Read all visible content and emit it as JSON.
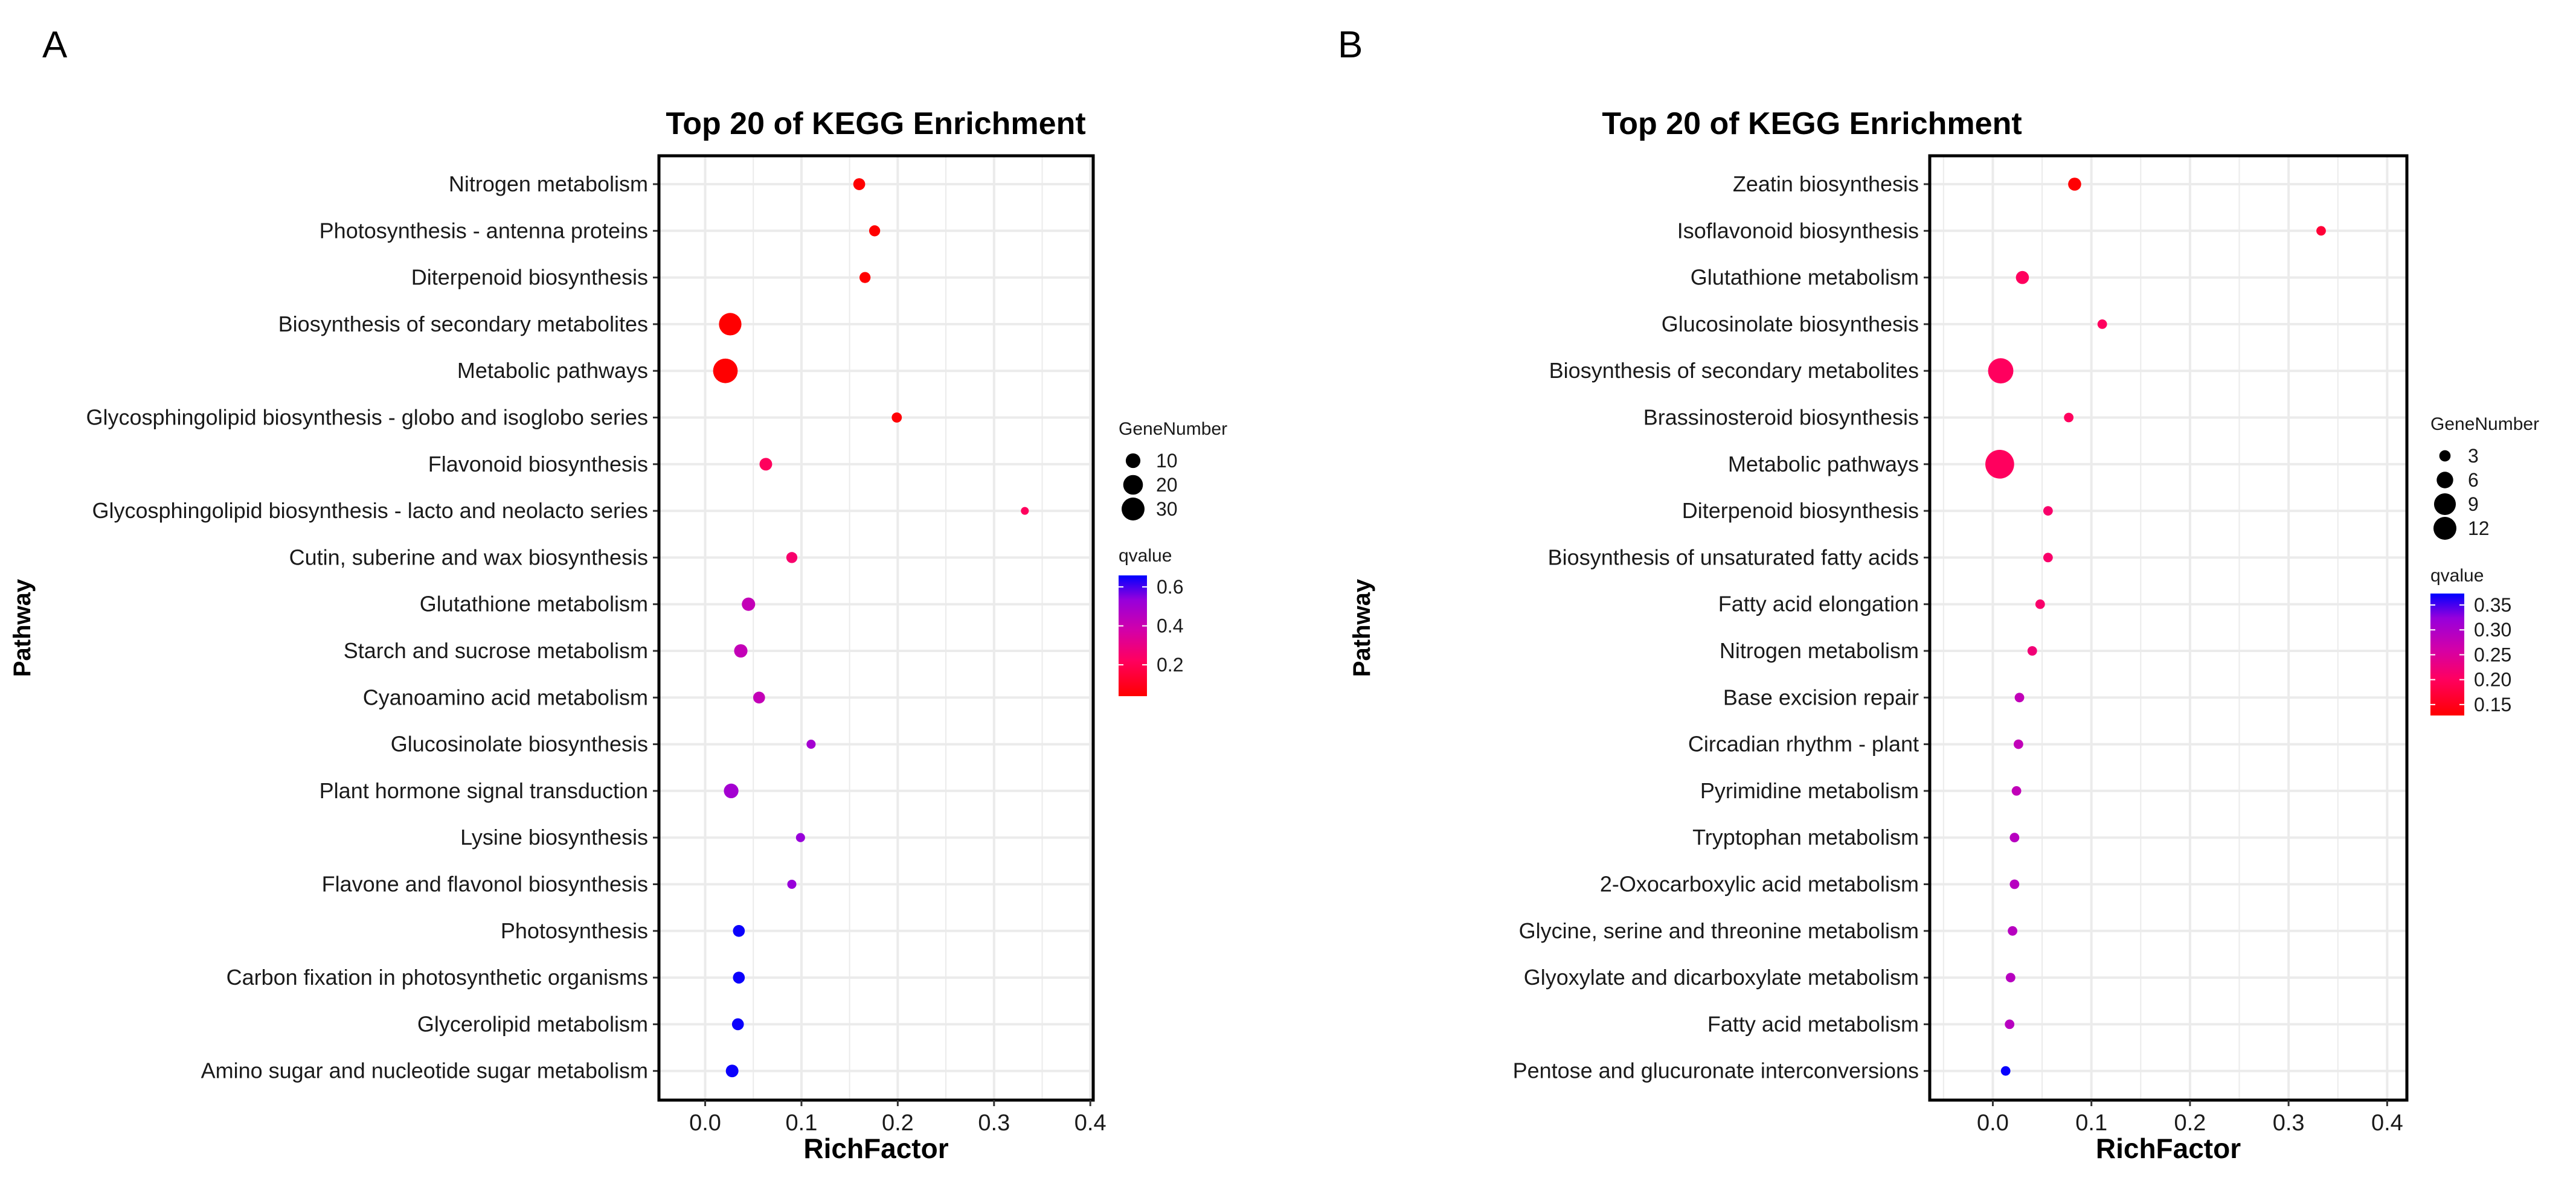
{
  "chart_data": [
    {
      "panel": "A",
      "type": "scatter",
      "title": "Top 20 of KEGG Enrichment",
      "xlabel": "RichFactor",
      "ylabel": "Pathway",
      "xlim": [
        -0.048,
        0.403
      ],
      "xticks": [
        0.0,
        0.1,
        0.2,
        0.3,
        0.4
      ],
      "xtick_labels": [
        "0.0",
        "0.1",
        "0.2",
        "0.3",
        "0.4"
      ],
      "grid": true,
      "size_legend": {
        "title": "GeneNumber",
        "values": [
          10,
          20,
          30
        ],
        "labels": [
          "10",
          "20",
          "30"
        ]
      },
      "color_legend": {
        "title": "qvalue",
        "range": [
          0.039,
          0.659
        ],
        "ticks": [
          0.2,
          0.4,
          0.6
        ],
        "labels": [
          "0.2",
          "0.4",
          "0.6"
        ],
        "low_color": "#FF0000",
        "high_color": "#0000FF"
      },
      "legend_position": "right",
      "points": [
        {
          "pathway": "Nitrogen metabolism",
          "rich_factor": 0.16,
          "gene_number": 6,
          "qvalue": 0.04
        },
        {
          "pathway": "Photosynthesis - antenna proteins",
          "rich_factor": 0.176,
          "gene_number": 5,
          "qvalue": 0.04
        },
        {
          "pathway": "Diterpenoid biosynthesis",
          "rich_factor": 0.166,
          "gene_number": 5,
          "qvalue": 0.04
        },
        {
          "pathway": "Biosynthesis of secondary metabolites",
          "rich_factor": 0.026,
          "gene_number": 27,
          "qvalue": 0.04
        },
        {
          "pathway": "Metabolic pathways",
          "rich_factor": 0.021,
          "gene_number": 33,
          "qvalue": 0.04
        },
        {
          "pathway": "Glycosphingolipid biosynthesis - globo and isoglobo series",
          "rich_factor": 0.199,
          "gene_number": 4,
          "qvalue": 0.05
        },
        {
          "pathway": "Flavonoid biosynthesis",
          "rich_factor": 0.063,
          "gene_number": 7,
          "qvalue": 0.22
        },
        {
          "pathway": "Glycosphingolipid biosynthesis - lacto and neolacto series",
          "rich_factor": 0.332,
          "gene_number": 2,
          "qvalue": 0.22
        },
        {
          "pathway": "Cutin, suberine and wax biosynthesis",
          "rich_factor": 0.09,
          "gene_number": 5,
          "qvalue": 0.25
        },
        {
          "pathway": "Glutathione metabolism",
          "rich_factor": 0.045,
          "gene_number": 8,
          "qvalue": 0.42
        },
        {
          "pathway": "Starch and sucrose metabolism",
          "rich_factor": 0.037,
          "gene_number": 8,
          "qvalue": 0.42
        },
        {
          "pathway": "Cyanoamino acid metabolism",
          "rich_factor": 0.056,
          "gene_number": 6,
          "qvalue": 0.42
        },
        {
          "pathway": "Glucosinolate biosynthesis",
          "rich_factor": 0.11,
          "gene_number": 3,
          "qvalue": 0.5
        },
        {
          "pathway": "Plant hormone signal transduction",
          "rich_factor": 0.027,
          "gene_number": 10,
          "qvalue": 0.5
        },
        {
          "pathway": "Lysine biosynthesis",
          "rich_factor": 0.099,
          "gene_number": 3,
          "qvalue": 0.53
        },
        {
          "pathway": "Flavone and flavonol biosynthesis",
          "rich_factor": 0.09,
          "gene_number": 3,
          "qvalue": 0.53
        },
        {
          "pathway": "Photosynthesis",
          "rich_factor": 0.035,
          "gene_number": 6,
          "qvalue": 0.65
        },
        {
          "pathway": "Carbon fixation in photosynthetic organisms",
          "rich_factor": 0.035,
          "gene_number": 6,
          "qvalue": 0.65
        },
        {
          "pathway": "Glycerolipid metabolism",
          "rich_factor": 0.034,
          "gene_number": 6,
          "qvalue": 0.65
        },
        {
          "pathway": "Amino sugar and nucleotide sugar metabolism",
          "rich_factor": 0.028,
          "gene_number": 7,
          "qvalue": 0.65
        }
      ]
    },
    {
      "panel": "B",
      "type": "scatter",
      "title": "Top 20 of KEGG Enrichment",
      "xlabel": "RichFactor",
      "ylabel": "Pathway",
      "xlim": [
        -0.064,
        0.42
      ],
      "xticks": [
        0.0,
        0.1,
        0.2,
        0.3,
        0.4
      ],
      "xtick_labels": [
        "0.0",
        "0.1",
        "0.2",
        "0.3",
        "0.4"
      ],
      "grid": true,
      "size_legend": {
        "title": "GeneNumber",
        "values": [
          3,
          6,
          9,
          12
        ],
        "labels": [
          "3",
          "6",
          "9",
          "12"
        ]
      },
      "color_legend": {
        "title": "qvalue",
        "range": [
          0.128,
          0.373
        ],
        "ticks": [
          0.15,
          0.2,
          0.25,
          0.3,
          0.35
        ],
        "labels": [
          "0.15",
          "0.20",
          "0.25",
          "0.30",
          "0.35"
        ],
        "low_color": "#FF0000",
        "high_color": "#0000FF"
      },
      "legend_position": "right",
      "points": [
        {
          "pathway": "Zeatin biosynthesis",
          "rich_factor": 0.083,
          "gene_number": 4,
          "qvalue": 0.13
        },
        {
          "pathway": "Isoflavonoid biosynthesis",
          "rich_factor": 0.333,
          "gene_number": 2,
          "qvalue": 0.17
        },
        {
          "pathway": "Glutathione metabolism",
          "rich_factor": 0.03,
          "gene_number": 4,
          "qvalue": 0.2
        },
        {
          "pathway": "Glucosinolate biosynthesis",
          "rich_factor": 0.111,
          "gene_number": 2,
          "qvalue": 0.2
        },
        {
          "pathway": "Biosynthesis of secondary metabolites",
          "rich_factor": 0.008,
          "gene_number": 11,
          "qvalue": 0.2
        },
        {
          "pathway": "Brassinosteroid biosynthesis",
          "rich_factor": 0.077,
          "gene_number": 2,
          "qvalue": 0.2
        },
        {
          "pathway": "Metabolic pathways",
          "rich_factor": 0.007,
          "gene_number": 13,
          "qvalue": 0.2
        },
        {
          "pathway": "Diterpenoid biosynthesis",
          "rich_factor": 0.056,
          "gene_number": 2,
          "qvalue": 0.21
        },
        {
          "pathway": "Biosynthesis of unsaturated fatty acids",
          "rich_factor": 0.056,
          "gene_number": 2,
          "qvalue": 0.21
        },
        {
          "pathway": "Fatty acid elongation",
          "rich_factor": 0.048,
          "gene_number": 2,
          "qvalue": 0.21
        },
        {
          "pathway": "Nitrogen metabolism",
          "rich_factor": 0.04,
          "gene_number": 2,
          "qvalue": 0.22
        },
        {
          "pathway": "Base excision repair",
          "rich_factor": 0.027,
          "gene_number": 2,
          "qvalue": 0.28
        },
        {
          "pathway": "Circadian rhythm - plant",
          "rich_factor": 0.026,
          "gene_number": 2,
          "qvalue": 0.28
        },
        {
          "pathway": "Pyrimidine metabolism",
          "rich_factor": 0.024,
          "gene_number": 2,
          "qvalue": 0.28
        },
        {
          "pathway": "Tryptophan metabolism",
          "rich_factor": 0.022,
          "gene_number": 2,
          "qvalue": 0.29
        },
        {
          "pathway": "2-Oxocarboxylic acid metabolism",
          "rich_factor": 0.022,
          "gene_number": 2,
          "qvalue": 0.29
        },
        {
          "pathway": "Glycine, serine and threonine metabolism",
          "rich_factor": 0.02,
          "gene_number": 2,
          "qvalue": 0.29
        },
        {
          "pathway": "Glyoxylate and dicarboxylate metabolism",
          "rich_factor": 0.018,
          "gene_number": 2,
          "qvalue": 0.29
        },
        {
          "pathway": "Fatty acid metabolism",
          "rich_factor": 0.017,
          "gene_number": 2,
          "qvalue": 0.29
        },
        {
          "pathway": "Pentose and glucuronate interconversions",
          "rich_factor": 0.013,
          "gene_number": 2,
          "qvalue": 0.37
        }
      ]
    }
  ]
}
